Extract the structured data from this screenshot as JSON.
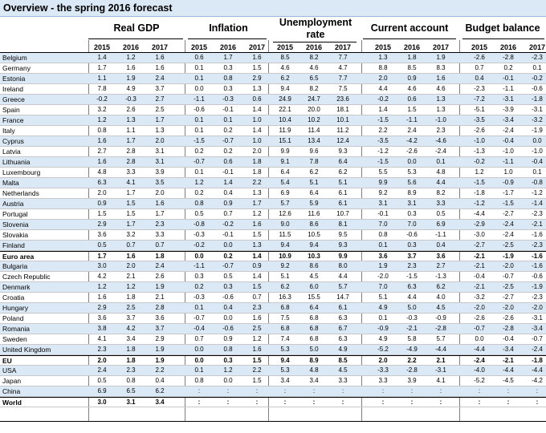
{
  "title": "Overview - the spring 2016 forecast",
  "groups": [
    {
      "label": "Real GDP"
    },
    {
      "label": "Inflation"
    },
    {
      "label": "Unemployment rate"
    },
    {
      "label": "Current account"
    },
    {
      "label": "Budget balance"
    }
  ],
  "years": [
    "2015",
    "2016",
    "2017"
  ],
  "rows": [
    {
      "country": "Belgium",
      "shade": true,
      "values": [
        "1.4",
        "1.2",
        "1.6",
        "0.6",
        "1.7",
        "1.6",
        "8.5",
        "8.2",
        "7.7",
        "1.3",
        "1.8",
        "1.9",
        "-2.6",
        "-2.8",
        "-2.3"
      ]
    },
    {
      "country": "Germany",
      "shade": false,
      "values": [
        "1.7",
        "1.6",
        "1.6",
        "0.1",
        "0.3",
        "1.5",
        "4.6",
        "4.6",
        "4.7",
        "8.8",
        "8.5",
        "8.3",
        "0.7",
        "0.2",
        "0.1"
      ]
    },
    {
      "country": "Estonia",
      "shade": true,
      "values": [
        "1.1",
        "1.9",
        "2.4",
        "0.1",
        "0.8",
        "2.9",
        "6.2",
        "6.5",
        "7.7",
        "2.0",
        "0.9",
        "1.6",
        "0.4",
        "-0.1",
        "-0.2"
      ]
    },
    {
      "country": "Ireland",
      "shade": false,
      "values": [
        "7.8",
        "4.9",
        "3.7",
        "0.0",
        "0.3",
        "1.3",
        "9.4",
        "8.2",
        "7.5",
        "4.4",
        "4.6",
        "4.6",
        "-2.3",
        "-1.1",
        "-0.6"
      ]
    },
    {
      "country": "Greece",
      "shade": true,
      "values": [
        "-0.2",
        "-0.3",
        "2.7",
        "-1.1",
        "-0.3",
        "0.6",
        "24.9",
        "24.7",
        "23.6",
        "-0.2",
        "0.6",
        "1.3",
        "-7.2",
        "-3.1",
        "-1.8"
      ]
    },
    {
      "country": "Spain",
      "shade": false,
      "values": [
        "3.2",
        "2.6",
        "2.5",
        "-0.6",
        "-0.1",
        "1.4",
        "22.1",
        "20.0",
        "18.1",
        "1.4",
        "1.5",
        "1.3",
        "-5.1",
        "-3.9",
        "-3.1"
      ]
    },
    {
      "country": "France",
      "shade": true,
      "values": [
        "1.2",
        "1.3",
        "1.7",
        "0.1",
        "0.1",
        "1.0",
        "10.4",
        "10.2",
        "10.1",
        "-1.5",
        "-1.1",
        "-1.0",
        "-3.5",
        "-3.4",
        "-3.2"
      ]
    },
    {
      "country": "Italy",
      "shade": false,
      "values": [
        "0.8",
        "1.1",
        "1.3",
        "0.1",
        "0.2",
        "1.4",
        "11.9",
        "11.4",
        "11.2",
        "2.2",
        "2.4",
        "2.3",
        "-2.6",
        "-2.4",
        "-1.9"
      ]
    },
    {
      "country": "Cyprus",
      "shade": true,
      "values": [
        "1.6",
        "1.7",
        "2.0",
        "-1.5",
        "-0.7",
        "1.0",
        "15.1",
        "13.4",
        "12.4",
        "-3.5",
        "-4.2",
        "-4.6",
        "-1.0",
        "-0.4",
        "0.0"
      ]
    },
    {
      "country": "Latvia",
      "shade": false,
      "values": [
        "2.7",
        "2.8",
        "3.1",
        "0.2",
        "0.2",
        "2.0",
        "9.9",
        "9.6",
        "9.3",
        "-1.2",
        "-2.6",
        "-2.4",
        "-1.3",
        "-1.0",
        "-1.0"
      ]
    },
    {
      "country": "Lithuania",
      "shade": true,
      "values": [
        "1.6",
        "2.8",
        "3.1",
        "-0.7",
        "0.6",
        "1.8",
        "9.1",
        "7.8",
        "6.4",
        "-1.5",
        "0.0",
        "0.1",
        "-0.2",
        "-1.1",
        "-0.4"
      ]
    },
    {
      "country": "Luxembourg",
      "shade": false,
      "values": [
        "4.8",
        "3.3",
        "3.9",
        "0.1",
        "-0.1",
        "1.8",
        "6.4",
        "6.2",
        "6.2",
        "5.5",
        "5.3",
        "4.8",
        "1.2",
        "1.0",
        "0.1"
      ]
    },
    {
      "country": "Malta",
      "shade": true,
      "values": [
        "6.3",
        "4.1",
        "3.5",
        "1.2",
        "1.4",
        "2.2",
        "5.4",
        "5.1",
        "5.1",
        "9.9",
        "5.6",
        "4.4",
        "-1.5",
        "-0.9",
        "-0.8"
      ]
    },
    {
      "country": "Netherlands",
      "shade": false,
      "values": [
        "2.0",
        "1.7",
        "2.0",
        "0.2",
        "0.4",
        "1.3",
        "6.9",
        "6.4",
        "6.1",
        "9.2",
        "8.9",
        "8.2",
        "-1.8",
        "-1.7",
        "-1.2"
      ]
    },
    {
      "country": "Austria",
      "shade": true,
      "values": [
        "0.9",
        "1.5",
        "1.6",
        "0.8",
        "0.9",
        "1.7",
        "5.7",
        "5.9",
        "6.1",
        "3.1",
        "3.1",
        "3.3",
        "-1.2",
        "-1.5",
        "-1.4"
      ]
    },
    {
      "country": "Portugal",
      "shade": false,
      "values": [
        "1.5",
        "1.5",
        "1.7",
        "0.5",
        "0.7",
        "1.2",
        "12.6",
        "11.6",
        "10.7",
        "-0.1",
        "0.3",
        "0.5",
        "-4.4",
        "-2.7",
        "-2.3"
      ]
    },
    {
      "country": "Slovenia",
      "shade": true,
      "values": [
        "2.9",
        "1.7",
        "2.3",
        "-0.8",
        "-0.2",
        "1.6",
        "9.0",
        "8.6",
        "8.1",
        "7.0",
        "7.0",
        "6.9",
        "-2.9",
        "-2.4",
        "-2.1"
      ]
    },
    {
      "country": "Slovakia",
      "shade": false,
      "values": [
        "3.6",
        "3.2",
        "3.3",
        "-0.3",
        "-0.1",
        "1.5",
        "11.5",
        "10.5",
        "9.5",
        "0.8",
        "-0.6",
        "-1.1",
        "-3.0",
        "-2.4",
        "-1.6"
      ]
    },
    {
      "country": "Finland",
      "shade": true,
      "values": [
        "0.5",
        "0.7",
        "0.7",
        "-0.2",
        "0.0",
        "1.3",
        "9.4",
        "9.4",
        "9.3",
        "0.1",
        "0.3",
        "0.4",
        "-2.7",
        "-2.5",
        "-2.3"
      ]
    },
    {
      "country": "Euro area",
      "shade": false,
      "bold": true,
      "values": [
        "1.7",
        "1.6",
        "1.8",
        "0.0",
        "0.2",
        "1.4",
        "10.9",
        "10.3",
        "9.9",
        "3.6",
        "3.7",
        "3.6",
        "-2.1",
        "-1.9",
        "-1.6"
      ]
    },
    {
      "country": "Bulgaria",
      "shade": true,
      "values": [
        "3.0",
        "2.0",
        "2.4",
        "-1.1",
        "-0.7",
        "0.9",
        "9.2",
        "8.6",
        "8.0",
        "1.9",
        "2.3",
        "2.7",
        "-2.1",
        "-2.0",
        "-1.6"
      ]
    },
    {
      "country": "Czech Republic",
      "shade": false,
      "values": [
        "4.2",
        "2.1",
        "2.6",
        "0.3",
        "0.5",
        "1.4",
        "5.1",
        "4.5",
        "4.4",
        "-2.0",
        "-1.5",
        "-1.3",
        "-0.4",
        "-0.7",
        "-0.6"
      ]
    },
    {
      "country": "Denmark",
      "shade": true,
      "values": [
        "1.2",
        "1.2",
        "1.9",
        "0.2",
        "0.3",
        "1.5",
        "6.2",
        "6.0",
        "5.7",
        "7.0",
        "6.3",
        "6.2",
        "-2.1",
        "-2.5",
        "-1.9"
      ]
    },
    {
      "country": "Croatia",
      "shade": false,
      "values": [
        "1.6",
        "1.8",
        "2.1",
        "-0.3",
        "-0.6",
        "0.7",
        "16.3",
        "15.5",
        "14.7",
        "5.1",
        "4.4",
        "4.0",
        "-3.2",
        "-2.7",
        "-2.3"
      ]
    },
    {
      "country": "Hungary",
      "shade": true,
      "values": [
        "2.9",
        "2.5",
        "2.8",
        "0.1",
        "0.4",
        "2.3",
        "6.8",
        "6.4",
        "6.1",
        "4.9",
        "5.0",
        "4.5",
        "-2.0",
        "-2.0",
        "-2.0"
      ]
    },
    {
      "country": "Poland",
      "shade": false,
      "values": [
        "3.6",
        "3.7",
        "3.6",
        "-0.7",
        "0.0",
        "1.6",
        "7.5",
        "6.8",
        "6.3",
        "0.1",
        "-0.3",
        "-0.9",
        "-2.6",
        "-2.6",
        "-3.1"
      ]
    },
    {
      "country": "Romania",
      "shade": true,
      "values": [
        "3.8",
        "4.2",
        "3.7",
        "-0.4",
        "-0.6",
        "2.5",
        "6.8",
        "6.8",
        "6.7",
        "-0.9",
        "-2.1",
        "-2.8",
        "-0.7",
        "-2.8",
        "-3.4"
      ]
    },
    {
      "country": "Sweden",
      "shade": false,
      "values": [
        "4.1",
        "3.4",
        "2.9",
        "0.7",
        "0.9",
        "1.2",
        "7.4",
        "6.8",
        "6.3",
        "4.9",
        "5.8",
        "5.7",
        "0.0",
        "-0.4",
        "-0.7"
      ]
    },
    {
      "country": "United Kingdom",
      "shade": true,
      "values": [
        "2.3",
        "1.8",
        "1.9",
        "0.0",
        "0.8",
        "1.6",
        "5.3",
        "5.0",
        "4.9",
        "-5.2",
        "-4.9",
        "-4.4",
        "-4.4",
        "-3.4",
        "-2.4"
      ]
    },
    {
      "country": "EU",
      "shade": false,
      "bold": true,
      "values": [
        "2.0",
        "1.8",
        "1.9",
        "0.0",
        "0.3",
        "1.5",
        "9.4",
        "8.9",
        "8.5",
        "2.0",
        "2.2",
        "2.1",
        "-2.4",
        "-2.1",
        "-1.8"
      ]
    },
    {
      "country": "USA",
      "shade": true,
      "values": [
        "2.4",
        "2.3",
        "2.2",
        "0.1",
        "1.2",
        "2.2",
        "5.3",
        "4.8",
        "4.5",
        "-3.3",
        "-2.8",
        "-3.1",
        "-4.0",
        "-4.4",
        "-4.4"
      ]
    },
    {
      "country": "Japan",
      "shade": false,
      "values": [
        "0.5",
        "0.8",
        "0.4",
        "0.8",
        "0.0",
        "1.5",
        "3.4",
        "3.4",
        "3.3",
        "3.3",
        "3.9",
        "4.1",
        "-5.2",
        "-4.5",
        "-4.2"
      ]
    },
    {
      "country": "China",
      "shade": true,
      "values": [
        "6.9",
        "6.5",
        "6.2",
        ":",
        ":",
        ":",
        ":",
        ":",
        ":",
        ":",
        ":",
        ":",
        ":",
        ":",
        ":"
      ]
    },
    {
      "country": "World",
      "shade": false,
      "bold": true,
      "values": [
        "3.0",
        "3.1",
        "3.4",
        ":",
        ":",
        ":",
        ":",
        ":",
        ":",
        ":",
        ":",
        ":",
        ":",
        ":",
        ":"
      ]
    }
  ]
}
